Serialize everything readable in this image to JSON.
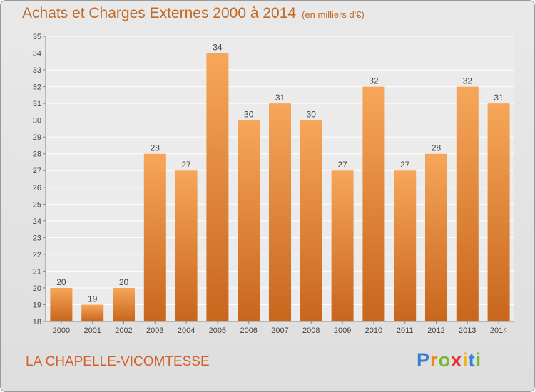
{
  "chart_data": {
    "type": "bar",
    "title": "Achats et Charges Externes 2000 à 2014",
    "subtitle": "(en milliers d'€)",
    "categories": [
      "2000",
      "2001",
      "2002",
      "2003",
      "2004",
      "2005",
      "2006",
      "2007",
      "2008",
      "2009",
      "2010",
      "2011",
      "2012",
      "2013",
      "2014"
    ],
    "values": [
      20,
      19,
      20,
      28,
      27,
      34,
      30,
      31,
      30,
      27,
      32,
      27,
      28,
      32,
      31
    ],
    "ylim": [
      18,
      35
    ],
    "yticks": [
      18,
      19,
      20,
      21,
      22,
      23,
      24,
      25,
      26,
      27,
      28,
      29,
      30,
      31,
      32,
      33,
      34,
      35
    ],
    "grid": true,
    "bar_color": "#f0913a",
    "xlabel": "",
    "ylabel": ""
  },
  "footer": {
    "commune": "LA CHAPELLE-VICOMTESSE",
    "logo": "Proxiti"
  }
}
